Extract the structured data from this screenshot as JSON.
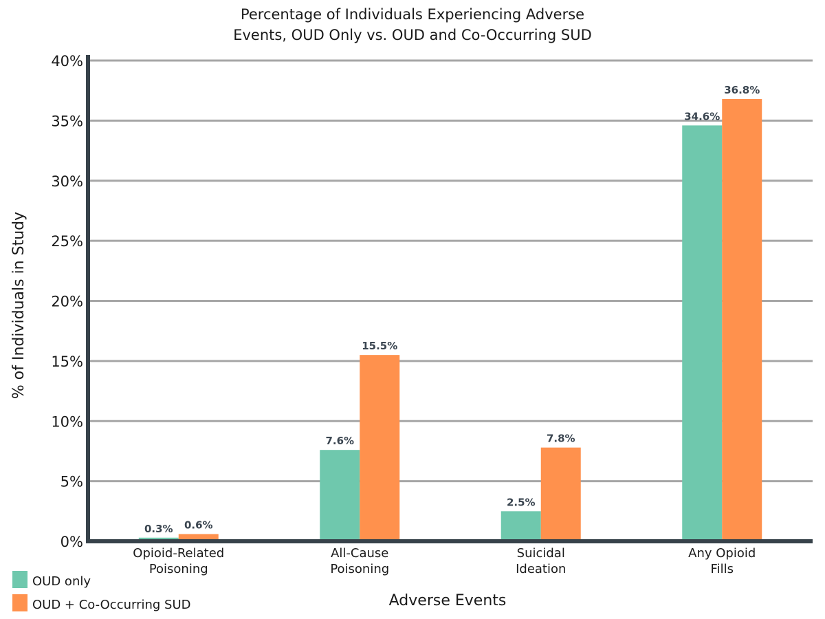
{
  "chart_data": {
    "type": "bar",
    "title_lines": [
      "Percentage of Individuals Experiencing Adverse",
      "Events, OUD Only vs. OUD and Co-Occurring SUD"
    ],
    "categories": [
      [
        "Opioid-Related",
        "Poisoning"
      ],
      [
        "All-Cause",
        "Poisoning"
      ],
      [
        "Suicidal",
        "Ideation"
      ],
      [
        "Any Opioid",
        "Fills"
      ]
    ],
    "series": [
      {
        "name": "OUD only",
        "values": [
          0.3,
          7.6,
          2.5,
          34.6
        ],
        "labels": [
          "0.3%",
          "7.6%",
          "2.5%",
          "34.6%"
        ],
        "color": "#6fc8ad"
      },
      {
        "name": "OUD + Co-Occurring SUD",
        "values": [
          0.6,
          15.5,
          7.8,
          36.8
        ],
        "labels": [
          "0.6%",
          "15.5%",
          "7.8%",
          "36.8%"
        ],
        "color": "#ff914d"
      }
    ],
    "xlabel": "Adverse Events",
    "ylabel": "% of Individuals in Study",
    "ylim": [
      0,
      40
    ],
    "yticks": [
      "0%",
      "5%",
      "10%",
      "15%",
      "20%",
      "25%",
      "30%",
      "35%",
      "40%"
    ],
    "grid": true,
    "legend_position": "bottom-left",
    "axis_color": "#37424a",
    "grid_color": "#a6a6a6"
  }
}
